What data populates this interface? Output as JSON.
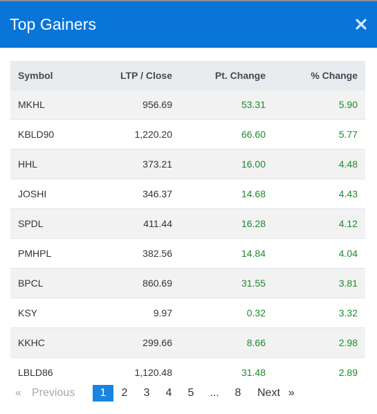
{
  "header": {
    "title": "Top Gainers",
    "close_icon": "close-icon"
  },
  "colors": {
    "header_bg": "#0a75d8",
    "gain": "#1a8a2a",
    "active_page": "#1a84e0"
  },
  "table": {
    "columns": [
      "Symbol",
      "LTP / Close",
      "Pt. Change",
      "% Change"
    ],
    "rows": [
      {
        "symbol": "MKHL",
        "ltp": "956.69",
        "pt": "53.31",
        "pct": "5.90"
      },
      {
        "symbol": "KBLD90",
        "ltp": "1,220.20",
        "pt": "66.60",
        "pct": "5.77"
      },
      {
        "symbol": "HHL",
        "ltp": "373.21",
        "pt": "16.00",
        "pct": "4.48"
      },
      {
        "symbol": "JOSHI",
        "ltp": "346.37",
        "pt": "14.68",
        "pct": "4.43"
      },
      {
        "symbol": "SPDL",
        "ltp": "411.44",
        "pt": "16.28",
        "pct": "4.12"
      },
      {
        "symbol": "PMHPL",
        "ltp": "382.56",
        "pt": "14.84",
        "pct": "4.04"
      },
      {
        "symbol": "BPCL",
        "ltp": "860.69",
        "pt": "31.55",
        "pct": "3.81"
      },
      {
        "symbol": "KSY",
        "ltp": "9.97",
        "pt": "0.32",
        "pct": "3.32"
      },
      {
        "symbol": "KKHC",
        "ltp": "299.66",
        "pt": "8.66",
        "pct": "2.98"
      },
      {
        "symbol": "LBLD86",
        "ltp": "1,120.48",
        "pt": "31.48",
        "pct": "2.89"
      }
    ]
  },
  "pagination": {
    "prev_arrow": "«",
    "prev_label": "Previous",
    "pages": [
      "1",
      "2",
      "3",
      "4",
      "5"
    ],
    "active_page": "1",
    "ellipsis": "...",
    "last_page": "8",
    "next_label": "Next",
    "next_arrow": "»"
  }
}
